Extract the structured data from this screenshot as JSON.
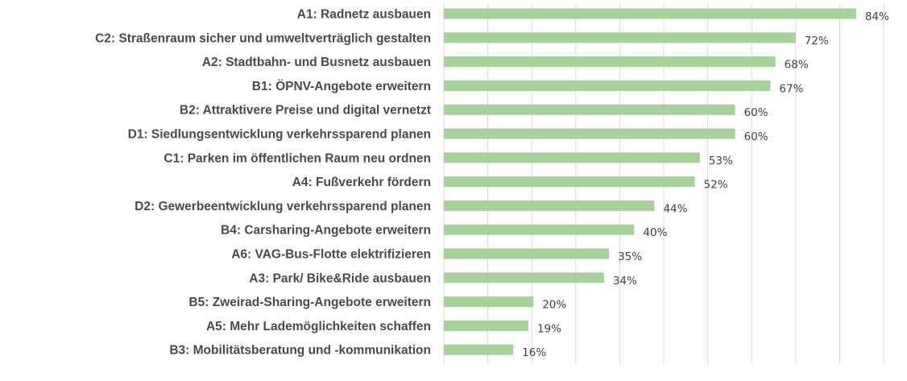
{
  "chart_data": {
    "type": "bar",
    "orientation": "horizontal",
    "title": "",
    "xlabel": "",
    "ylabel": "",
    "xlim": [
      0,
      100
    ],
    "grid": true,
    "bar_color": "#a6d19b",
    "categories": [
      "A1: Radnetz ausbauen",
      "C2: Straßenraum sicher und umweltverträglich gestalten",
      "A2: Stadtbahn- und Busnetz ausbauen",
      "B1: ÖPNV-Angebote erweitern",
      "B2: Attraktivere Preise und digital vernetzt",
      "D1: Siedlungsentwicklung verkehrssparend planen",
      "C1: Parken im öffentlichen Raum neu ordnen",
      "A4: Fußverkehr fördern",
      "D2: Gewerbeentwicklung verkehrssparend planen",
      "B4: Carsharing-Angebote erweitern",
      "A6: VAG-Bus-Flotte elektrifizieren",
      "A3: Park/ Bike&Ride ausbauen",
      "B5: Zweirad-Sharing-Angebote erweitern",
      "A5: Mehr Lademöglichkeiten schaffen",
      "B3: Mobilitätsberatung und -kommunikation"
    ],
    "values": [
      84,
      72,
      68,
      67,
      60,
      60,
      53,
      52,
      44,
      40,
      35,
      34,
      20,
      19,
      16
    ],
    "labels": [
      "84%",
      "72%",
      "68%",
      "67%",
      "60%",
      "60%",
      "53%",
      "52%",
      "44%",
      "40%",
      "35%",
      "34%",
      "20%",
      "19%",
      "16%"
    ]
  }
}
